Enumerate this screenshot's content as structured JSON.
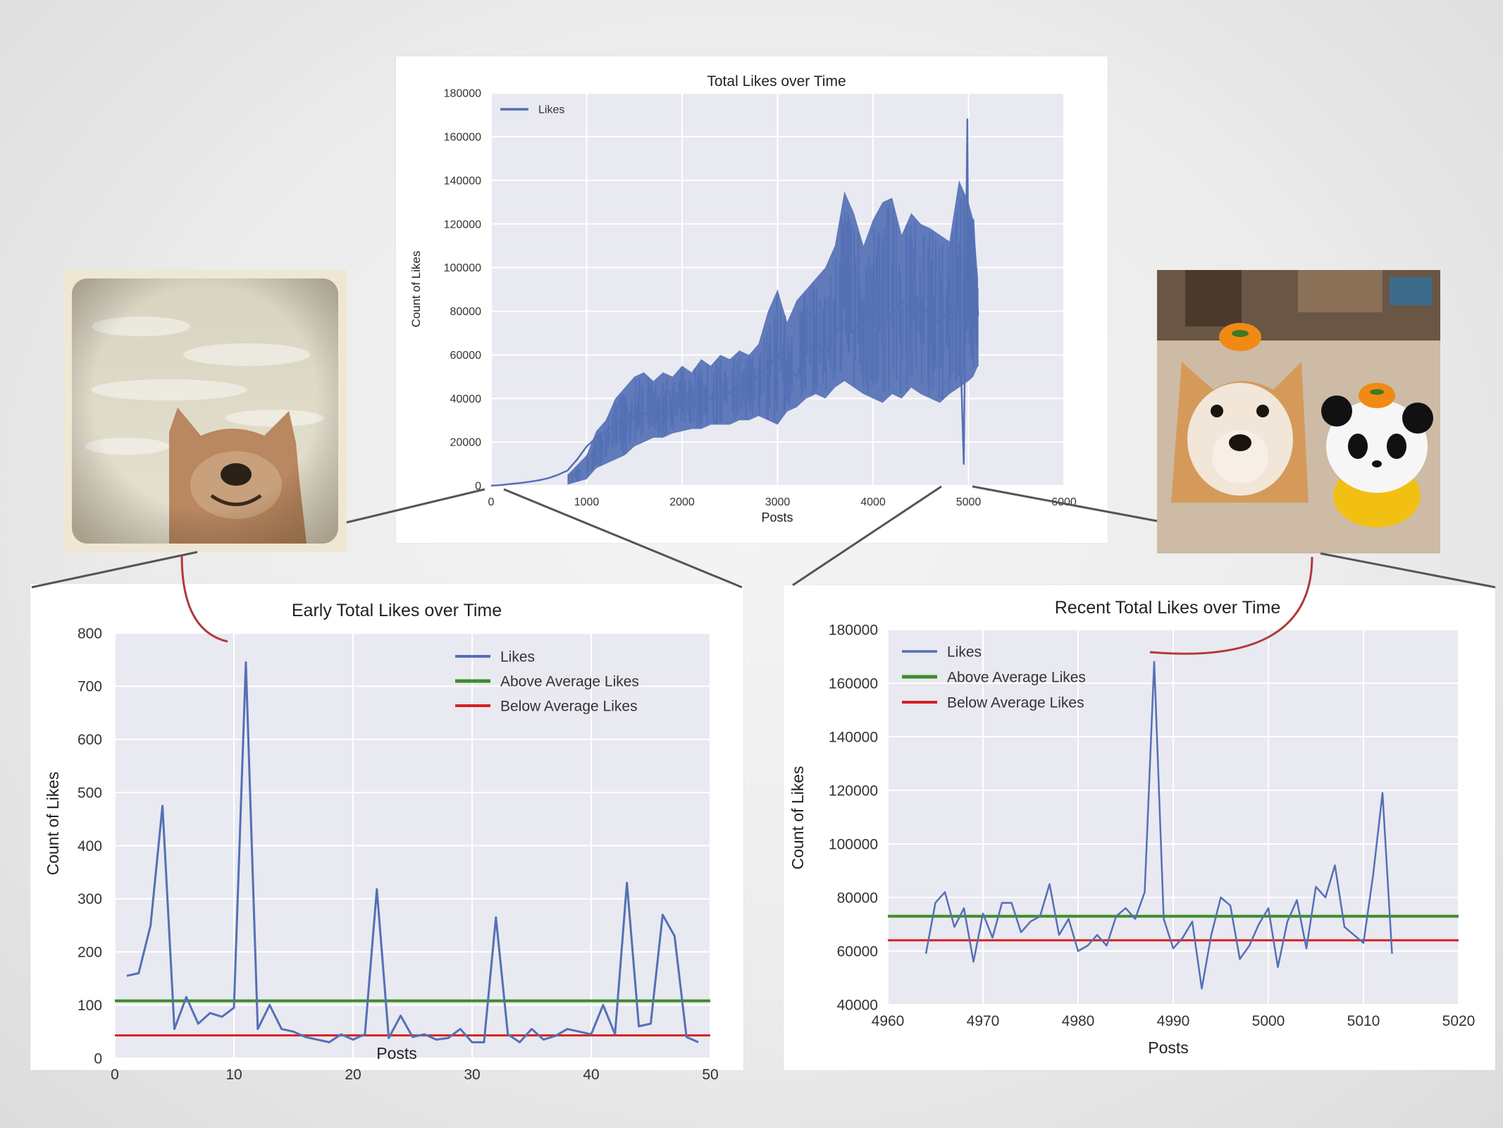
{
  "colors": {
    "likes": "#5470b5",
    "above": "#3d8c2a",
    "below": "#d72020",
    "plot_bg": "#e9e9f1",
    "grid": "#ffffff",
    "connector": "#555555",
    "curve": "#b03a3a"
  },
  "chart_data": [
    {
      "id": "top",
      "type": "line",
      "title": "Total Likes over Time",
      "xlabel": "Posts",
      "ylabel": "Count of Likes",
      "xlim": [
        0,
        6000
      ],
      "ylim": [
        0,
        180000
      ],
      "xticks": [
        0,
        1000,
        2000,
        3000,
        4000,
        5000,
        6000
      ],
      "yticks": [
        0,
        20000,
        40000,
        60000,
        80000,
        100000,
        120000,
        140000,
        160000,
        180000
      ],
      "grid": true,
      "legend": "upper-left",
      "series": [
        {
          "name": "Likes",
          "x": [
            0,
            100,
            200,
            300,
            400,
            500,
            600,
            700,
            800,
            900,
            1000,
            1100,
            1200,
            1300,
            1400,
            1500,
            1600,
            1700,
            1800,
            1900,
            2000,
            2100,
            2200,
            2300,
            2400,
            2500,
            2600,
            2700,
            2800,
            2900,
            3000,
            3100,
            3200,
            3300,
            3400,
            3500,
            3600,
            3700,
            3800,
            3900,
            4000,
            4100,
            4200,
            4300,
            4400,
            4500,
            4600,
            4700,
            4800,
            4900,
            4950,
            4988,
            5000,
            5050,
            5100
          ],
          "y": [
            50,
            300,
            800,
            1200,
            1800,
            2500,
            3500,
            5000,
            7000,
            12000,
            18000,
            22000,
            25000,
            28000,
            30000,
            32000,
            33000,
            34000,
            35000,
            36000,
            37000,
            38000,
            39000,
            40000,
            41000,
            43000,
            45000,
            47000,
            50000,
            55000,
            60000,
            55000,
            50000,
            62000,
            65000,
            60000,
            70000,
            75000,
            70000,
            78000,
            82000,
            80000,
            78000,
            85000,
            80000,
            82000,
            78000,
            75000,
            80000,
            85000,
            10000,
            168000,
            75000,
            122000,
            78000
          ],
          "band": [
            [
              800,
              500,
              5000
            ],
            [
              1000,
              3000,
              14000
            ],
            [
              1100,
              8000,
              25000
            ],
            [
              1200,
              10000,
              30000
            ],
            [
              1300,
              12000,
              40000
            ],
            [
              1400,
              14000,
              45000
            ],
            [
              1500,
              18000,
              50000
            ],
            [
              1600,
              20000,
              52000
            ],
            [
              1700,
              22000,
              48000
            ],
            [
              1800,
              22000,
              52000
            ],
            [
              1900,
              24000,
              50000
            ],
            [
              2000,
              25000,
              55000
            ],
            [
              2100,
              26000,
              52000
            ],
            [
              2200,
              26000,
              58000
            ],
            [
              2300,
              28000,
              55000
            ],
            [
              2400,
              28000,
              60000
            ],
            [
              2500,
              28000,
              58000
            ],
            [
              2600,
              30000,
              62000
            ],
            [
              2700,
              30000,
              60000
            ],
            [
              2800,
              32000,
              65000
            ],
            [
              2900,
              30000,
              80000
            ],
            [
              3000,
              28000,
              90000
            ],
            [
              3100,
              34000,
              75000
            ],
            [
              3200,
              36000,
              85000
            ],
            [
              3300,
              40000,
              90000
            ],
            [
              3400,
              42000,
              95000
            ],
            [
              3500,
              40000,
              100000
            ],
            [
              3600,
              45000,
              110000
            ],
            [
              3700,
              48000,
              135000
            ],
            [
              3800,
              45000,
              125000
            ],
            [
              3900,
              42000,
              110000
            ],
            [
              4000,
              40000,
              122000
            ],
            [
              4100,
              38000,
              130000
            ],
            [
              4200,
              42000,
              132000
            ],
            [
              4300,
              40000,
              115000
            ],
            [
              4400,
              45000,
              125000
            ],
            [
              4500,
              42000,
              120000
            ],
            [
              4600,
              40000,
              118000
            ],
            [
              4700,
              38000,
              115000
            ],
            [
              4800,
              42000,
              112000
            ],
            [
              4900,
              45000,
              140000
            ],
            [
              5000,
              48000,
              130000
            ],
            [
              5050,
              50000,
              122000
            ],
            [
              5100,
              55000,
              95000
            ]
          ]
        }
      ]
    },
    {
      "id": "early",
      "type": "line",
      "title": "Early Total Likes over Time",
      "xlabel": "Posts",
      "ylabel": "Count of Likes",
      "xlim": [
        0,
        50
      ],
      "ylim": [
        0,
        800
      ],
      "xticks": [
        0,
        10,
        20,
        30,
        40,
        50
      ],
      "yticks": [
        0,
        100,
        200,
        300,
        400,
        500,
        600,
        700,
        800
      ],
      "grid": true,
      "legend": "upper-right",
      "hlines": {
        "above": 108,
        "below": 43
      },
      "series": [
        {
          "name": "Likes",
          "x": [
            1,
            2,
            3,
            4,
            5,
            6,
            7,
            8,
            9,
            10,
            11,
            12,
            13,
            14,
            15,
            16,
            17,
            18,
            19,
            20,
            21,
            22,
            23,
            24,
            25,
            26,
            27,
            28,
            29,
            30,
            31,
            32,
            33,
            34,
            35,
            36,
            37,
            38,
            39,
            40,
            41,
            42,
            43,
            44,
            45,
            46,
            47,
            48,
            49
          ],
          "y": [
            155,
            160,
            250,
            475,
            55,
            115,
            65,
            85,
            78,
            95,
            745,
            55,
            100,
            55,
            50,
            40,
            35,
            30,
            45,
            35,
            45,
            318,
            38,
            80,
            40,
            45,
            35,
            38,
            55,
            30,
            30,
            265,
            45,
            30,
            55,
            35,
            42,
            55,
            50,
            45,
            100,
            45,
            330,
            60,
            65,
            270,
            230,
            40,
            30
          ]
        },
        {
          "name": "Above Average Likes"
        },
        {
          "name": "Below Average Likes"
        }
      ]
    },
    {
      "id": "recent",
      "type": "line",
      "title": "Recent Total Likes over Time",
      "xlabel": "Posts",
      "ylabel": "Count of Likes",
      "xlim": [
        4960,
        5020
      ],
      "ylim": [
        40000,
        180000
      ],
      "xticks": [
        4960,
        4970,
        4980,
        4990,
        5000,
        5010,
        5020
      ],
      "yticks": [
        40000,
        60000,
        80000,
        100000,
        120000,
        140000,
        160000,
        180000
      ],
      "grid": true,
      "legend": "upper-left",
      "hlines": {
        "above": 73000,
        "below": 64000
      },
      "series": [
        {
          "name": "Likes",
          "x": [
            4964,
            4965,
            4966,
            4967,
            4968,
            4969,
            4970,
            4971,
            4972,
            4973,
            4974,
            4975,
            4976,
            4977,
            4978,
            4979,
            4980,
            4981,
            4982,
            4983,
            4984,
            4985,
            4986,
            4987,
            4988,
            4989,
            4990,
            4991,
            4992,
            4993,
            4994,
            4995,
            4996,
            4997,
            4998,
            4999,
            5000,
            5001,
            5002,
            5003,
            5004,
            5005,
            5006,
            5007,
            5008,
            5009,
            5010,
            5011,
            5012,
            5013
          ],
          "y": [
            59000,
            78000,
            82000,
            69000,
            76000,
            56000,
            74000,
            65000,
            78000,
            78000,
            67000,
            71000,
            73000,
            85000,
            66000,
            72000,
            60000,
            62000,
            66000,
            62000,
            73000,
            76000,
            72000,
            82000,
            168000,
            72000,
            61000,
            65000,
            71000,
            46000,
            66000,
            80000,
            77000,
            57000,
            62000,
            70000,
            76000,
            54000,
            71000,
            79000,
            61000,
            84000,
            80000,
            92000,
            69000,
            66000,
            63000,
            88000,
            119000,
            59000
          ]
        },
        {
          "name": "Above Average Likes"
        },
        {
          "name": "Below Average Likes"
        }
      ]
    }
  ]
}
